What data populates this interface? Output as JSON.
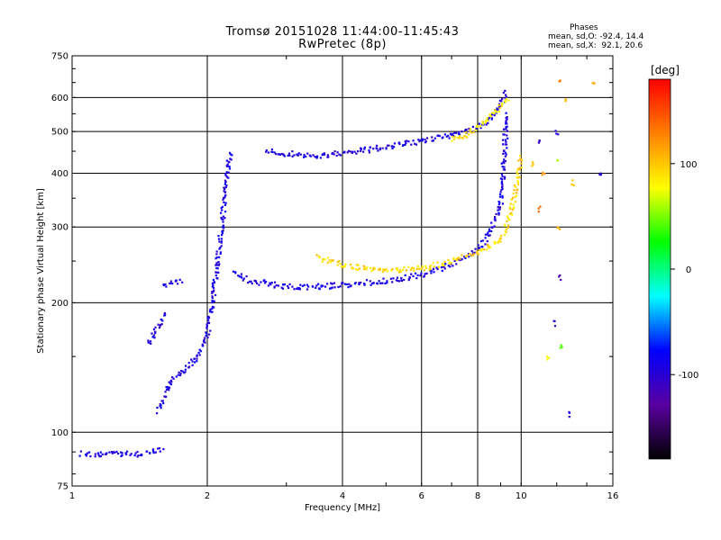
{
  "chart_data": {
    "type": "scatter",
    "title": "Tromsø 20151028 11:44:00-11:45:43",
    "subtitle": "RwPretec (8p)",
    "xlabel": "Frequency [MHz]",
    "ylabel": "Stationary phase Virtual Height [km]",
    "x_scale": "log",
    "y_scale": "log",
    "xlim": [
      1,
      16
    ],
    "ylim": [
      75,
      750
    ],
    "x_ticks": [
      "1",
      "2",
      "4",
      "6",
      "8",
      "10",
      "16"
    ],
    "y_ticks": [
      "75",
      "100",
      "200",
      "300",
      "400",
      "500",
      "600",
      "750"
    ],
    "grid": true,
    "colorbar": {
      "label": "[deg]",
      "range": [
        -180,
        180
      ],
      "ticks": [
        "100",
        "0",
        "-100"
      ],
      "colors": [
        "#000000",
        "#5a00a0",
        "#0000ff",
        "#00ffff",
        "#00ff00",
        "#ffff00",
        "#ff8000",
        "#ff0000"
      ]
    },
    "phases": {
      "title": "Phases",
      "o_line": "mean, sd,O: -92.4, 14.4",
      "x_line": "mean, sd,X:  92.1, 20.6"
    },
    "traces": [
      {
        "freq": [
          1.05,
          1.2,
          1.4,
          1.5,
          1.6
        ],
        "height": [
          89,
          89,
          89,
          90,
          91
        ],
        "phase": -92
      },
      {
        "freq": [
          1.55,
          1.62,
          1.7,
          1.8,
          1.9,
          2.0,
          2.05,
          2.1,
          2.15,
          2.2,
          2.25
        ],
        "height": [
          112,
          125,
          135,
          140,
          150,
          170,
          200,
          240,
          300,
          370,
          450
        ],
        "phase": -92
      },
      {
        "freq": [
          1.48,
          1.52,
          1.57,
          1.62
        ],
        "height": [
          160,
          170,
          180,
          190
        ],
        "phase": -95
      },
      {
        "freq": [
          1.6,
          1.65,
          1.7,
          1.75
        ],
        "height": [
          218,
          222,
          225,
          220
        ],
        "phase": -92
      },
      {
        "freq": [
          2.3,
          2.5,
          3.0,
          3.5,
          4.0,
          5.0,
          6.0,
          7.0,
          8.0,
          8.5,
          9.0,
          9.3
        ],
        "height": [
          235,
          225,
          218,
          218,
          220,
          225,
          232,
          245,
          265,
          290,
          340,
          550
        ],
        "phase": -92
      },
      {
        "freq": [
          2.7,
          3.0,
          3.5,
          4.0,
          5.0,
          6.0,
          7.0,
          8.0,
          8.6,
          9.0,
          9.3
        ],
        "height": [
          450,
          445,
          440,
          445,
          460,
          475,
          490,
          510,
          540,
          580,
          620
        ],
        "phase": -95
      },
      {
        "freq": [
          3.5,
          4.0,
          4.5,
          5.0,
          6.0,
          7.0,
          8.0,
          8.8,
          9.2,
          9.5,
          9.8,
          10.0
        ],
        "height": [
          255,
          245,
          240,
          238,
          240,
          250,
          262,
          275,
          290,
          330,
          380,
          440
        ],
        "phase": 92
      },
      {
        "freq": [
          7.0,
          7.5,
          8.0,
          8.5,
          9.0,
          9.4
        ],
        "height": [
          480,
          490,
          510,
          540,
          570,
          600
        ],
        "phase": 85
      }
    ],
    "sparse_points": [
      {
        "freq": 12.0,
        "height": 500,
        "phase": -95
      },
      {
        "freq": 12.0,
        "height": 430,
        "phase": 60
      },
      {
        "freq": 11.0,
        "height": 480,
        "phase": -110
      },
      {
        "freq": 11.2,
        "height": 400,
        "phase": 120
      },
      {
        "freq": 10.6,
        "height": 420,
        "phase": 100
      },
      {
        "freq": 11.0,
        "height": 330,
        "phase": 140
      },
      {
        "freq": 12.2,
        "height": 230,
        "phase": -120
      },
      {
        "freq": 12.3,
        "height": 160,
        "phase": 40
      },
      {
        "freq": 12.1,
        "height": 300,
        "phase": 110
      },
      {
        "freq": 11.9,
        "height": 180,
        "phase": -100
      },
      {
        "freq": 12.5,
        "height": 600,
        "phase": 105
      },
      {
        "freq": 12.2,
        "height": 650,
        "phase": 130
      },
      {
        "freq": 13.0,
        "height": 380,
        "phase": 100
      },
      {
        "freq": 12.8,
        "height": 110,
        "phase": -95
      },
      {
        "freq": 11.5,
        "height": 150,
        "phase": 80
      },
      {
        "freq": 14.5,
        "height": 650,
        "phase": 110
      },
      {
        "freq": 15.0,
        "height": 400,
        "phase": -100
      }
    ]
  }
}
